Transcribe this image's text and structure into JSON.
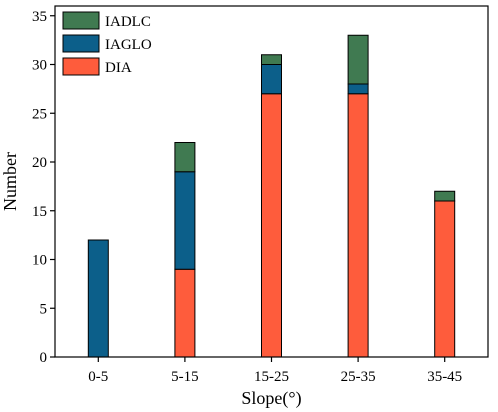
{
  "chart_data": {
    "type": "bar",
    "stacked": true,
    "categories": [
      "0-5",
      "5-15",
      "15-25",
      "25-35",
      "35-45"
    ],
    "series": [
      {
        "name": "DIA",
        "color": "#fe5c3c",
        "values": [
          0,
          9,
          27,
          27,
          16
        ]
      },
      {
        "name": "IAGLO",
        "color": "#0c5f8a",
        "values": [
          12,
          10,
          3,
          1,
          0
        ]
      },
      {
        "name": "IADLC",
        "color": "#407a51",
        "values": [
          0,
          3,
          1,
          5,
          1
        ]
      }
    ],
    "legend_order": [
      "IADLC",
      "IAGLO",
      "DIA"
    ],
    "xlabel": "Slope(°)",
    "ylabel": "Number",
    "ylim": [
      0,
      36
    ],
    "yticks": [
      0,
      5,
      10,
      15,
      20,
      25,
      30,
      35
    ],
    "legend_position": "top-left",
    "grid": false
  }
}
